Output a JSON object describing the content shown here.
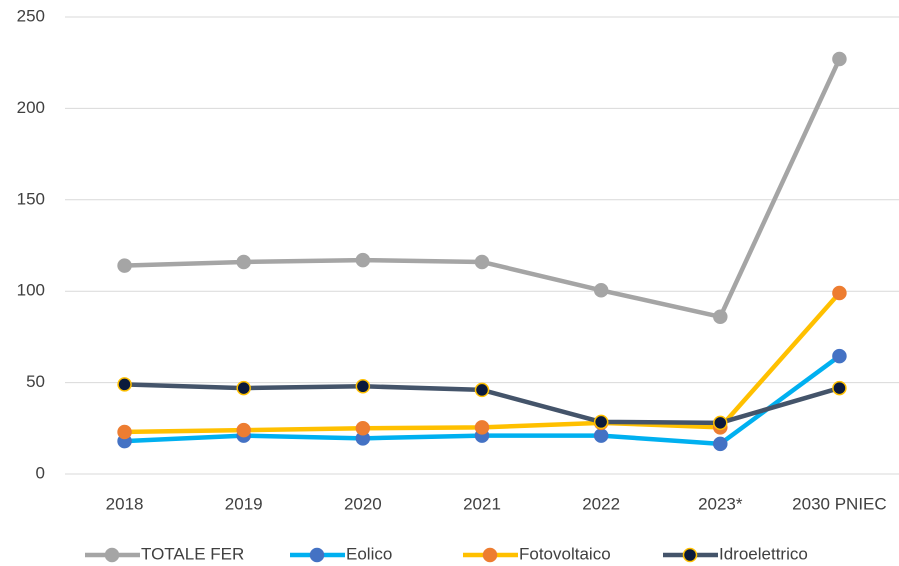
{
  "chart_data": {
    "type": "line",
    "categories": [
      "2018",
      "2019",
      "2020",
      "2021",
      "2022",
      "2023*",
      "2030 PNIEC"
    ],
    "series": [
      {
        "name": "TOTALE FER",
        "color": "#a5a5a5",
        "marker_color": "#a5a5a5",
        "marker_edge": "#a5a5a5",
        "values": [
          114,
          116,
          117,
          116,
          100.5,
          86,
          227
        ]
      },
      {
        "name": "Eolico",
        "color": "#00b0f0",
        "marker_color": "#4472c4",
        "marker_edge": "#4472c4",
        "values": [
          18,
          21,
          19.5,
          21,
          21,
          16.5,
          64.5
        ]
      },
      {
        "name": "Fotovoltaico",
        "color": "#ffc000",
        "marker_color": "#ed7d31",
        "marker_edge": "#ed7d31",
        "values": [
          23,
          24,
          25,
          25.5,
          28,
          25.5,
          99
        ]
      },
      {
        "name": "Idroelettrico",
        "color": "#44546a",
        "marker_color": "#0b1a3c",
        "marker_edge": "#ffc000",
        "values": [
          49,
          47,
          48,
          46,
          28.5,
          28,
          47
        ]
      }
    ],
    "ylim": [
      0,
      250
    ],
    "yticks": [
      0,
      50,
      100,
      150,
      200,
      250
    ],
    "grid": true,
    "legend": "bottom"
  }
}
